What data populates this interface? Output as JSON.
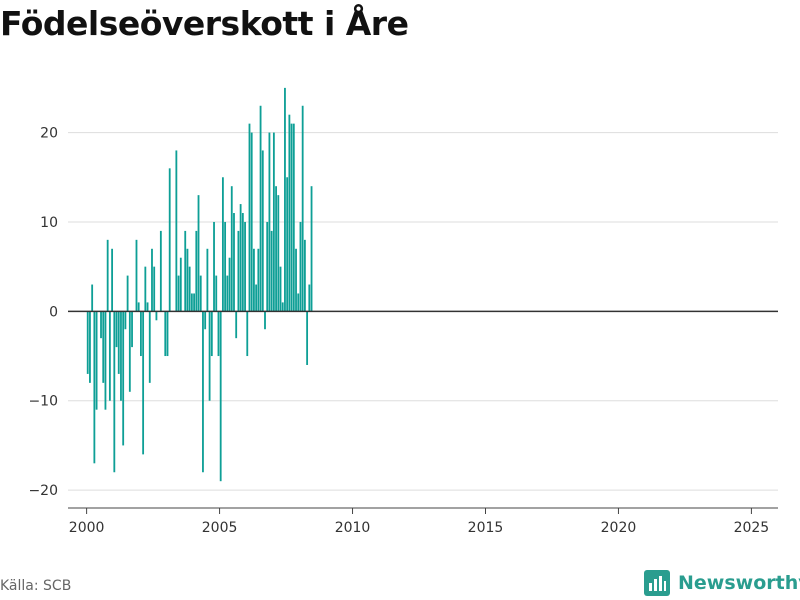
{
  "header": {
    "title": "Födelseöverskott i Åre"
  },
  "footer": {
    "source": "Källa: SCB",
    "brand": "Newsworthy"
  },
  "colors": {
    "bar": "#0e9f96",
    "zero_line": "#333333",
    "grid": "#dddddd",
    "brand": "#2a9d8f"
  },
  "icons": {
    "brand_logo": "bar-chart-logo-icon"
  },
  "chart_data": {
    "type": "bar",
    "title": "Födelseöverskott i Åre",
    "xlabel": "",
    "ylabel": "",
    "ylim": [
      -22,
      27
    ],
    "xlim": [
      1999.3,
      2026.0
    ],
    "grid": true,
    "legend": "none",
    "y_ticks": [
      -20,
      -10,
      0,
      10,
      20
    ],
    "x_ticks": [
      2000,
      2005,
      2010,
      2015,
      2020,
      2025
    ],
    "period": "month",
    "start": "2000-01",
    "values": [
      -7,
      -8,
      3,
      -17,
      -11,
      null,
      -3,
      -8,
      -11,
      8,
      -10,
      7,
      -18,
      -4,
      -7,
      -10,
      -15,
      -2,
      4,
      -9,
      -4,
      null,
      8,
      1,
      -5,
      -16,
      5,
      1,
      -8,
      7,
      5,
      -1,
      null,
      9,
      null,
      -5,
      -5,
      16,
      null,
      null,
      18,
      4,
      6,
      null,
      9,
      7,
      5,
      2,
      2,
      9,
      13,
      4,
      -18,
      -2,
      7,
      -10,
      -5,
      10,
      4,
      -5,
      -19,
      15,
      10,
      4,
      6,
      14,
      11,
      -3,
      9,
      12,
      11,
      10,
      -5,
      21,
      20,
      7,
      3,
      7,
      23,
      18,
      -2,
      10,
      20,
      9,
      20,
      14,
      13,
      5,
      1,
      25,
      15,
      22,
      21,
      21,
      7,
      2,
      10,
      23,
      8,
      -6,
      3,
      14
    ]
  }
}
